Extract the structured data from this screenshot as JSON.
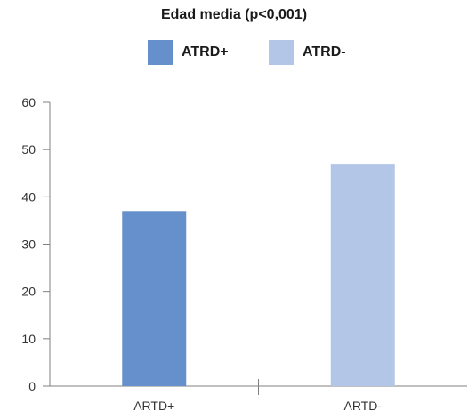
{
  "chart_data": {
    "type": "bar",
    "title": "Edad media (p<0,001)",
    "categories": [
      "ARTD+",
      "ARTD-"
    ],
    "series": [
      {
        "name": "ATRD+",
        "color": "#6690cb",
        "values": [
          37,
          null
        ]
      },
      {
        "name": "ATRD-",
        "color": "#b3c6e7",
        "values": [
          null,
          47
        ]
      }
    ],
    "ylim": [
      0,
      60
    ],
    "yticks": [
      0,
      10,
      20,
      30,
      40,
      50,
      60
    ],
    "grid": false,
    "legend_position": "top-center"
  }
}
